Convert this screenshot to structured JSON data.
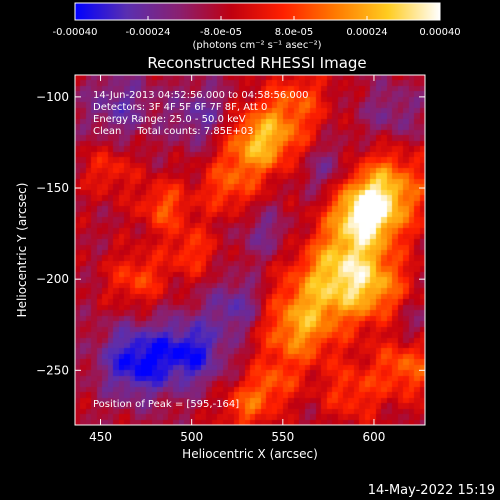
{
  "colorbar": {
    "tick_labels": [
      "-0.00040",
      "-0.00024",
      "-8.0e-05",
      "8.0e-05",
      "0.00024",
      "0.00040"
    ],
    "tick_values": [
      -0.0004,
      -0.00024,
      -8e-05,
      8e-05,
      0.00024,
      0.0004
    ],
    "range": [
      -0.0004,
      0.0004
    ],
    "unit_label": "(photons cm⁻² s⁻¹ asec⁻²)",
    "colormap": [
      "#0000ff",
      "#5a2fb0",
      "#8a2070",
      "#c00010",
      "#ff2000",
      "#ff7a00",
      "#ffcc20",
      "#ffffff"
    ]
  },
  "chart_data": {
    "type": "heatmap",
    "title": "Reconstructed RHESSI Image",
    "xlabel": "Heliocentric X (arcsec)",
    "ylabel": "Heliocentric Y (arcsec)",
    "xlim": [
      436,
      628
    ],
    "ylim": [
      -280,
      -88
    ],
    "x_ticks": [
      450,
      500,
      550,
      600
    ],
    "y_ticks": [
      -100,
      -150,
      -200,
      -250
    ],
    "annotations": [
      "14-Jun-2013 04:52:56.000 to 04:58:56.000",
      "Detectors: 3F 4F 5F 6F 7F 8F, Att 0",
      "Energy Range: 25.0 - 50.0 keV",
      "Clean     Total counts: 7.85E+03"
    ],
    "peak_label": "Position of Peak = [595,-164]",
    "peak": [
      595,
      -164
    ],
    "sources": [
      {
        "x": 595,
        "y": -164,
        "amp": 0.0004,
        "sigma": 13
      },
      {
        "x": 608,
        "y": -150,
        "amp": 0.00026,
        "sigma": 16
      },
      {
        "x": 582,
        "y": -192,
        "amp": 0.00028,
        "sigma": 15
      },
      {
        "x": 600,
        "y": -205,
        "amp": 0.00025,
        "sigma": 14
      },
      {
        "x": 566,
        "y": -215,
        "amp": 0.00022,
        "sigma": 16
      },
      {
        "x": 555,
        "y": -232,
        "amp": 0.00018,
        "sigma": 14
      },
      {
        "x": 618,
        "y": -248,
        "amp": 0.00022,
        "sigma": 12
      },
      {
        "x": 588,
        "y": -262,
        "amp": 0.00016,
        "sigma": 12
      },
      {
        "x": 545,
        "y": -120,
        "amp": 0.00024,
        "sigma": 14
      },
      {
        "x": 532,
        "y": -128,
        "amp": 0.00019,
        "sigma": 12
      },
      {
        "x": 560,
        "y": -100,
        "amp": 0.00014,
        "sigma": 12
      },
      {
        "x": 520,
        "y": -150,
        "amp": 0.00018,
        "sigma": 11
      },
      {
        "x": 485,
        "y": -160,
        "amp": 0.0002,
        "sigma": 10
      },
      {
        "x": 470,
        "y": -200,
        "amp": 0.00018,
        "sigma": 11
      },
      {
        "x": 500,
        "y": -185,
        "amp": 0.00016,
        "sigma": 10
      },
      {
        "x": 455,
        "y": -140,
        "amp": 0.00014,
        "sigma": 10
      },
      {
        "x": 530,
        "y": -270,
        "amp": 0.0002,
        "sigma": 10
      },
      {
        "x": 545,
        "y": -258,
        "amp": 0.00016,
        "sigma": 9
      },
      {
        "x": 470,
        "y": -245,
        "amp": -0.0003,
        "sigma": 14
      },
      {
        "x": 500,
        "y": -240,
        "amp": -0.00026,
        "sigma": 13
      },
      {
        "x": 525,
        "y": -215,
        "amp": -0.00018,
        "sigma": 11
      },
      {
        "x": 460,
        "y": -105,
        "amp": -0.00016,
        "sigma": 13
      },
      {
        "x": 505,
        "y": -110,
        "amp": -0.00016,
        "sigma": 12
      },
      {
        "x": 575,
        "y": -140,
        "amp": -0.00014,
        "sigma": 11
      },
      {
        "x": 540,
        "y": -175,
        "amp": -0.00012,
        "sigma": 10
      },
      {
        "x": 610,
        "y": -110,
        "amp": -0.00012,
        "sigma": 12
      },
      {
        "x": 620,
        "y": -225,
        "amp": -0.0001,
        "sigma": 9
      }
    ]
  },
  "footer": {
    "timestamp": "14-May-2022 15:19"
  }
}
